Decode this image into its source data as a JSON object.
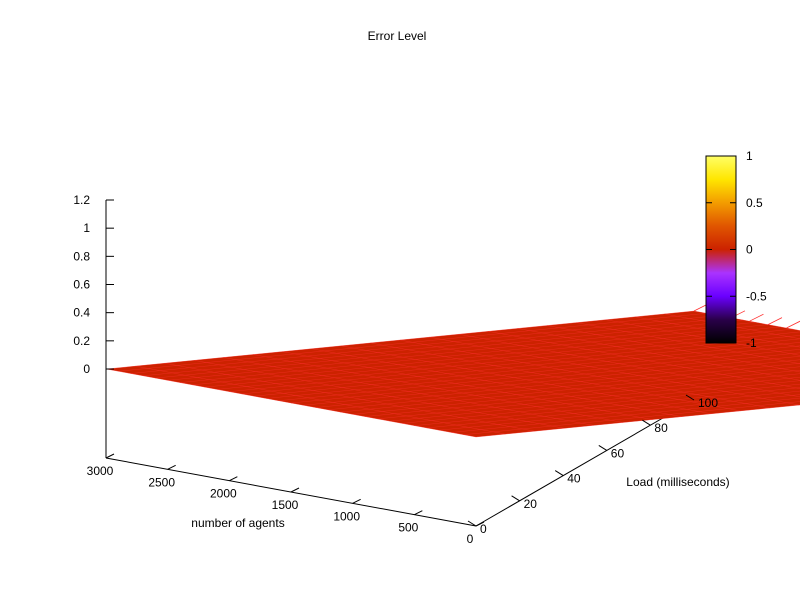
{
  "chart_data": {
    "type": "surface",
    "title": "Error Level",
    "xlabel": "number of agents",
    "ylabel": "Load  (milliseconds)",
    "zlabel": "",
    "x_ticks": [
      "3000",
      "2500",
      "2000",
      "1500",
      "1000",
      "500",
      "0"
    ],
    "x_tick_values": [
      3000,
      2500,
      2000,
      1500,
      1000,
      500,
      0
    ],
    "y_ticks": [
      "0",
      "20",
      "40",
      "60",
      "80",
      "100"
    ],
    "y_tick_values": [
      0,
      20,
      40,
      60,
      80,
      100
    ],
    "z_ticks": [
      "1.2",
      "1",
      "0.8",
      "0.6",
      "0.4",
      "0.2",
      "0"
    ],
    "z_tick_values": [
      1.2,
      1,
      0.8,
      0.6,
      0.4,
      0.2,
      0
    ],
    "xlim": [
      0,
      3000
    ],
    "ylim": [
      0,
      100
    ],
    "zlim": [
      0,
      1.2
    ],
    "surface_value": 0,
    "surface_color": "#cc2200",
    "mesh_color": "#ff3030",
    "colorbar": {
      "ticks": [
        "1",
        "0.5",
        "0",
        "-0.5",
        "-1"
      ],
      "values": [
        1,
        0.5,
        0,
        -0.5,
        -1
      ],
      "range": [
        -1,
        1
      ],
      "palette": [
        "#000000",
        "#2a004a",
        "#6a00ff",
        "#aa33ff",
        "#cc2200",
        "#e05500",
        "#f39c00",
        "#ffe600",
        "#ffff66"
      ]
    }
  }
}
